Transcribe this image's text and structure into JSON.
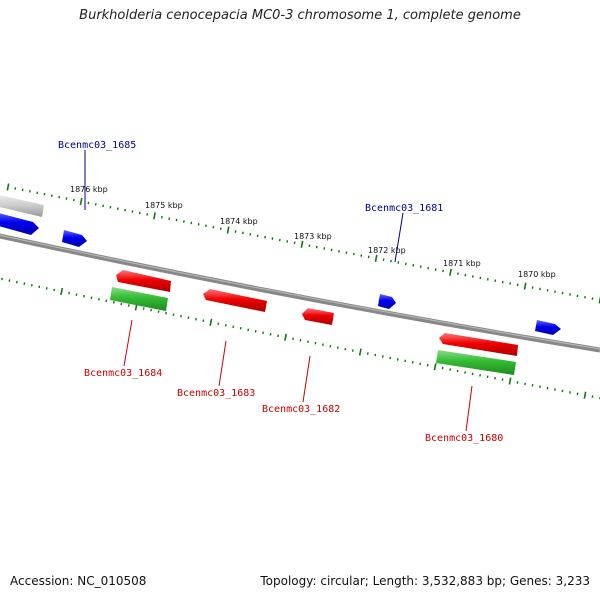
{
  "title": "Burkholderia cenocepacia MC0-3 chromosome 1, complete genome",
  "footer": {
    "accession": "Accession: NC_010508",
    "summary": "Topology: circular; Length: 3,532,883 bp; Genes: 3,233"
  },
  "colors": {
    "backbone": "#777777",
    "forward_gene": "#0000ee",
    "reverse_gene": "#ee0000",
    "rna_like": "#33bb33",
    "tick": "#117711",
    "forward_label": "#00008b",
    "reverse_label": "#cc0000"
  },
  "scale_labels": [
    "1876 kbp",
    "1875 kbp",
    "1874 kbp",
    "1873 kbp",
    "1872 kbp",
    "1871 kbp",
    "1870 kbp"
  ],
  "gene_labels": {
    "g1685": "Bcenmc03_1685",
    "g1681": "Bcenmc03_1681",
    "g1684": "Bcenmc03_1684",
    "g1683": "Bcenmc03_1683",
    "g1682": "Bcenmc03_1682",
    "g1680": "Bcenmc03_1680"
  }
}
